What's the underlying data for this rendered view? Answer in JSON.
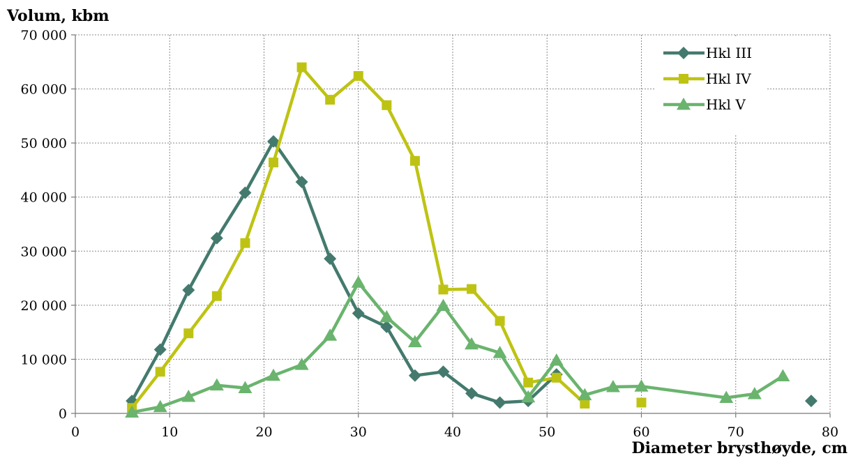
{
  "chart_data": {
    "type": "line",
    "ylabel": "Volum, kbm",
    "xlabel": "Diameter brysthøyde, cm",
    "xlim": [
      0,
      80
    ],
    "ylim": [
      0,
      70000
    ],
    "x_ticks": [
      0,
      10,
      20,
      30,
      40,
      50,
      60,
      70,
      80
    ],
    "x_tick_labels": [
      "0",
      "10",
      "20",
      "30",
      "40",
      "50",
      "60",
      "70",
      "80"
    ],
    "y_ticks": [
      0,
      10000,
      20000,
      30000,
      40000,
      50000,
      60000,
      70000
    ],
    "y_tick_labels": [
      "0",
      "10 000",
      "20 000",
      "30 000",
      "40 000",
      "50 000",
      "60 000",
      "70 000"
    ],
    "grid": true,
    "legend_position": "top-right",
    "series": [
      {
        "name": "Hkl III",
        "color": "#447a6e",
        "marker": "diamond",
        "points": [
          [
            6,
            2300
          ],
          [
            9,
            11800
          ],
          [
            12,
            22800
          ],
          [
            15,
            32400
          ],
          [
            18,
            40800
          ],
          [
            21,
            50300
          ],
          [
            24,
            42800
          ],
          [
            27,
            28600
          ],
          [
            30,
            18500
          ],
          [
            33,
            16000
          ],
          [
            36,
            7000
          ],
          [
            39,
            7700
          ],
          [
            42,
            3700
          ],
          [
            45,
            2000
          ],
          [
            48,
            2300
          ],
          [
            51,
            7200
          ],
          [
            78,
            2300
          ]
        ],
        "breaks_after_index": [
          15
        ]
      },
      {
        "name": "Hkl IV",
        "color": "#bec313",
        "marker": "square",
        "points": [
          [
            6,
            1000
          ],
          [
            9,
            7700
          ],
          [
            12,
            14800
          ],
          [
            15,
            21700
          ],
          [
            18,
            31500
          ],
          [
            21,
            46400
          ],
          [
            24,
            64000
          ],
          [
            27,
            58000
          ],
          [
            30,
            62400
          ],
          [
            33,
            57000
          ],
          [
            36,
            46700
          ],
          [
            39,
            22900
          ],
          [
            42,
            23000
          ],
          [
            45,
            17100
          ],
          [
            48,
            5700
          ],
          [
            51,
            6600
          ],
          [
            54,
            1800
          ],
          [
            60,
            2000
          ]
        ],
        "breaks_after_index": [
          16
        ]
      },
      {
        "name": "Hkl V",
        "color": "#6ab46e",
        "marker": "triangle",
        "points": [
          [
            6,
            200
          ],
          [
            9,
            1200
          ],
          [
            12,
            3100
          ],
          [
            15,
            5200
          ],
          [
            18,
            4700
          ],
          [
            21,
            7000
          ],
          [
            24,
            9000
          ],
          [
            27,
            14400
          ],
          [
            30,
            24200
          ],
          [
            33,
            17800
          ],
          [
            36,
            13200
          ],
          [
            39,
            19900
          ],
          [
            42,
            12800
          ],
          [
            45,
            11200
          ],
          [
            48,
            3000
          ],
          [
            51,
            9800
          ],
          [
            54,
            3400
          ],
          [
            57,
            4900
          ],
          [
            60,
            5000
          ],
          [
            69,
            2900
          ],
          [
            72,
            3600
          ],
          [
            75,
            6900
          ]
        ],
        "breaks_after_index": []
      }
    ]
  }
}
